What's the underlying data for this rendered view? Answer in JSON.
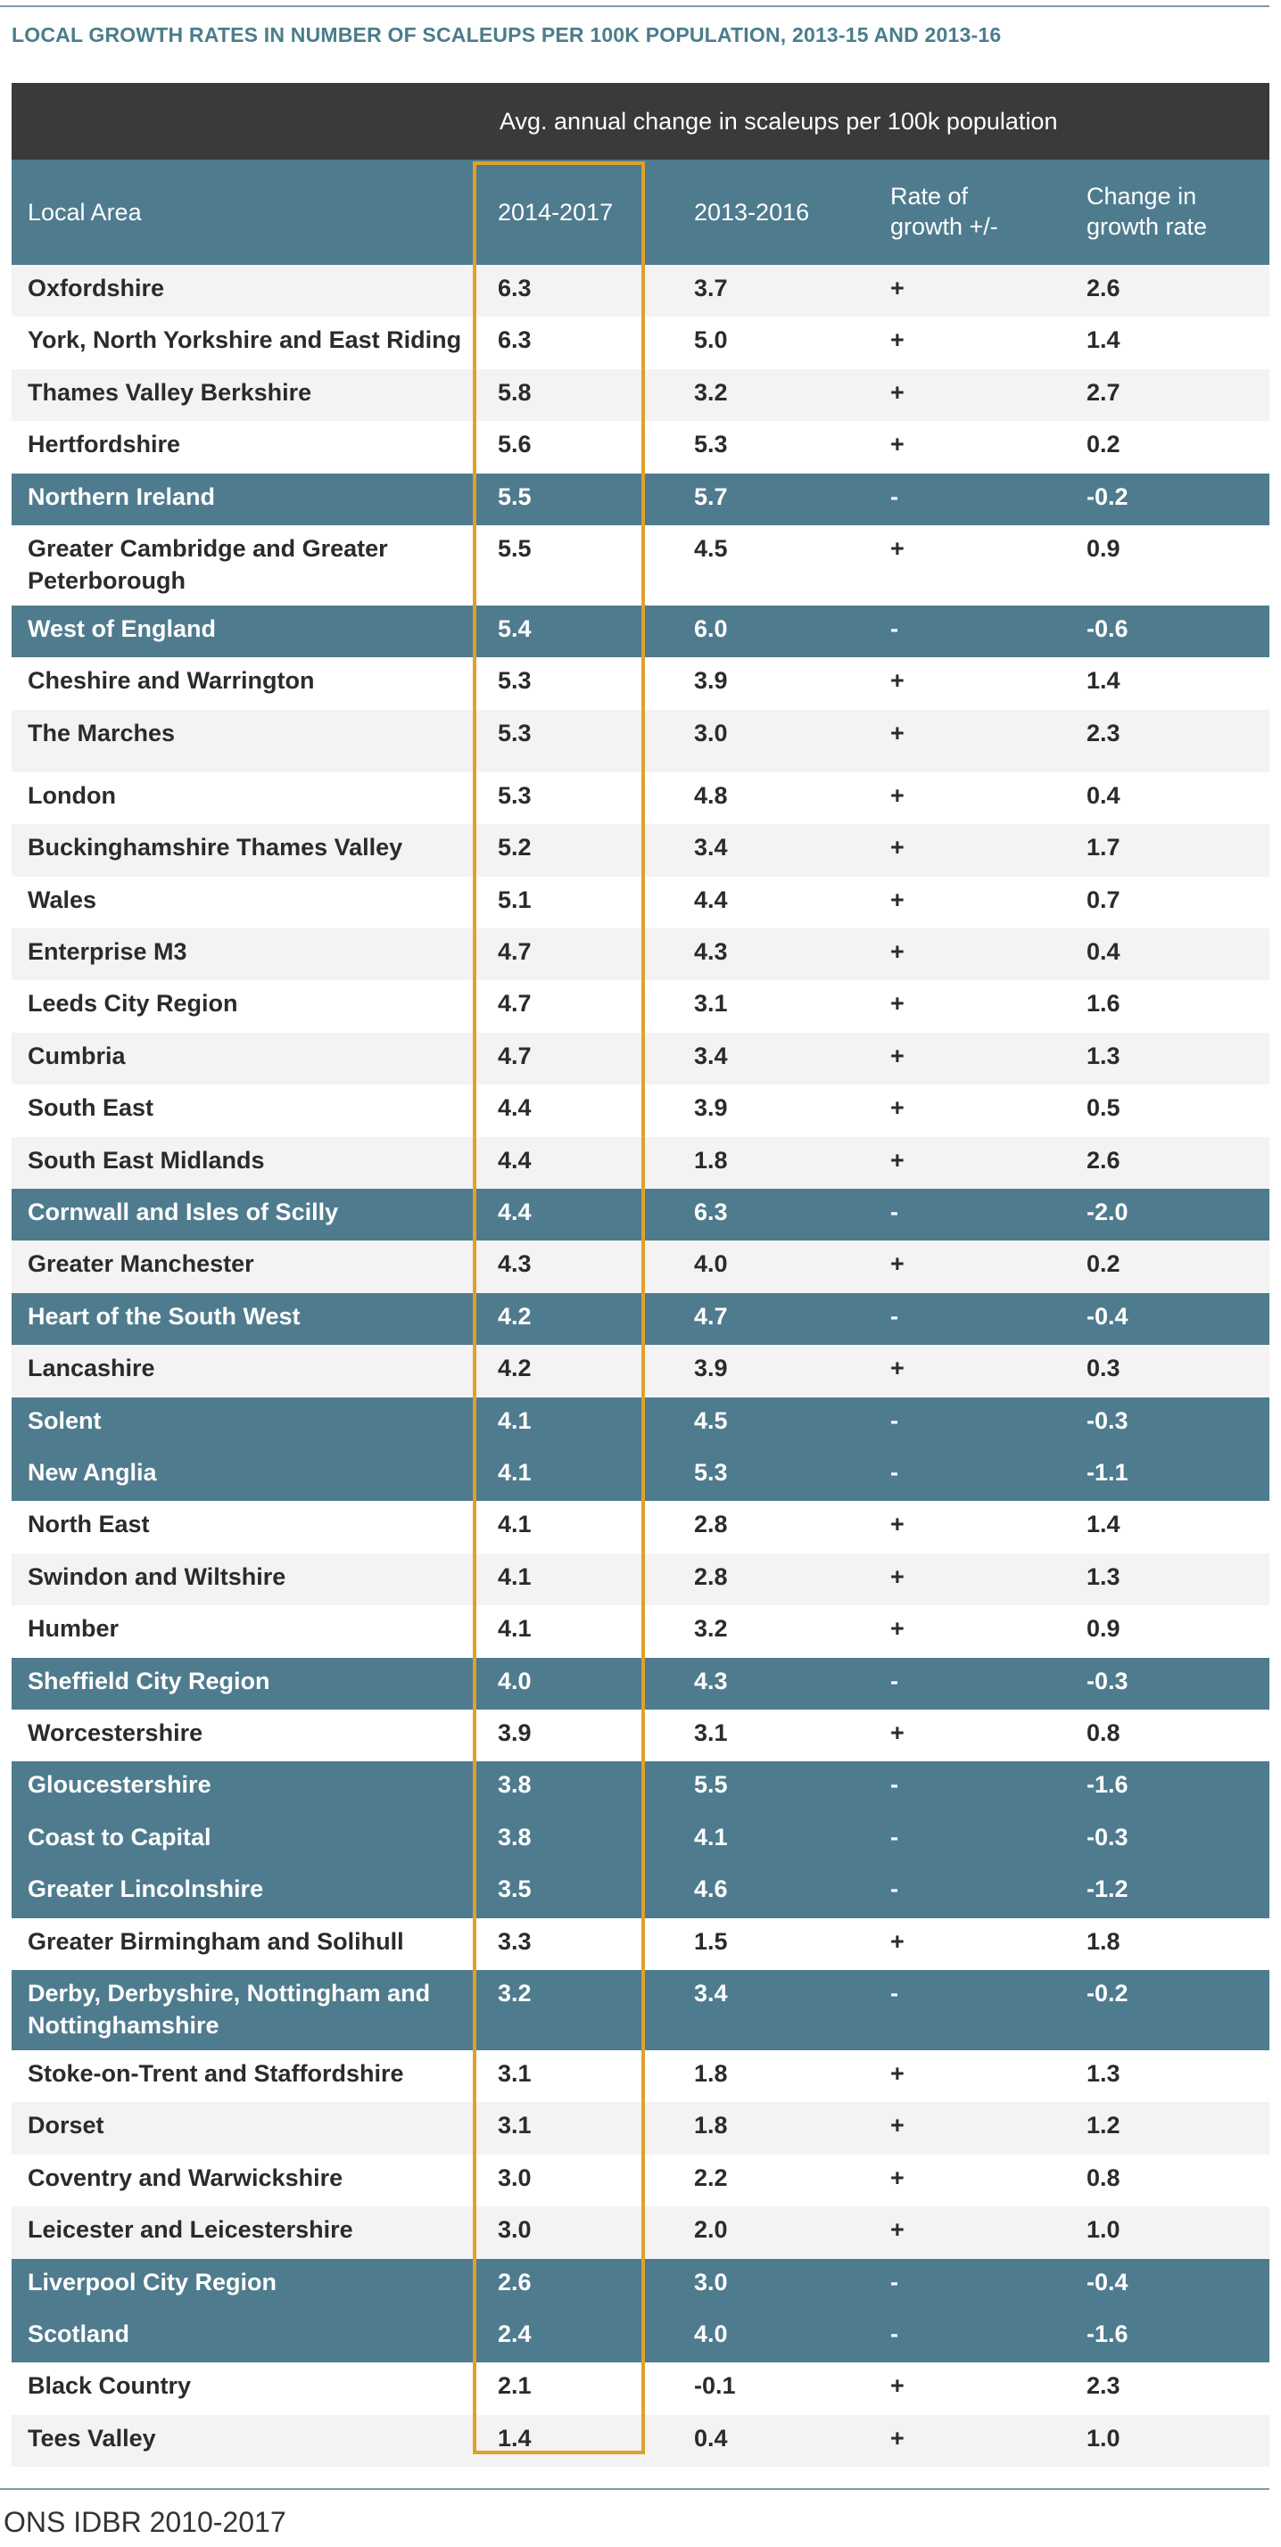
{
  "title": "LOCAL GROWTH RATES IN NUMBER OF SCALEUPS PER 100K POPULATION, 2013-15 AND 2013-16",
  "group_header": "Avg. annual change in scaleups per 100k population",
  "columns": {
    "area": "Local Area",
    "a": "2014-2017",
    "b": "2013-2016",
    "c": "Rate of growth +/-",
    "d": "Change in growth rate"
  },
  "rows": [
    {
      "area": "Oxfordshire",
      "a": "6.3",
      "b": "3.7",
      "c": "+",
      "d": "2.6"
    },
    {
      "area": "York, North Yorkshire and East Riding",
      "a": "6.3",
      "b": "5.0",
      "c": "+",
      "d": "1.4"
    },
    {
      "area": "Thames Valley Berkshire",
      "a": "5.8",
      "b": "3.2",
      "c": "+",
      "d": "2.7"
    },
    {
      "area": "Hertfordshire",
      "a": "5.6",
      "b": "5.3",
      "c": "+",
      "d": "0.2"
    },
    {
      "area": "Northern Ireland",
      "a": "5.5",
      "b": "5.7",
      "c": "-",
      "d": "-0.2"
    },
    {
      "area": "Greater Cambridge and Greater Peterborough",
      "a": "5.5",
      "b": "4.5",
      "c": "+",
      "d": "0.9"
    },
    {
      "area": "West of England",
      "a": "5.4",
      "b": "6.0",
      "c": "-",
      "d": "-0.6"
    },
    {
      "area": "Cheshire and Warrington",
      "a": "5.3",
      "b": "3.9",
      "c": "+",
      "d": "1.4"
    },
    {
      "area": "The Marches",
      "a": "5.3",
      "b": "3.0",
      "c": "+",
      "d": "2.3"
    },
    {
      "area": "London",
      "a": "5.3",
      "b": "4.8",
      "c": "+",
      "d": "0.4"
    },
    {
      "area": "Buckinghamshire Thames Valley",
      "a": "5.2",
      "b": "3.4",
      "c": "+",
      "d": "1.7"
    },
    {
      "area": "Wales",
      "a": "5.1",
      "b": "4.4",
      "c": "+",
      "d": "0.7"
    },
    {
      "area": "Enterprise M3",
      "a": "4.7",
      "b": "4.3",
      "c": "+",
      "d": "0.4"
    },
    {
      "area": "Leeds City Region",
      "a": "4.7",
      "b": "3.1",
      "c": "+",
      "d": "1.6"
    },
    {
      "area": "Cumbria",
      "a": "4.7",
      "b": "3.4",
      "c": "+",
      "d": "1.3"
    },
    {
      "area": "South East",
      "a": "4.4",
      "b": "3.9",
      "c": "+",
      "d": "0.5"
    },
    {
      "area": "South East Midlands",
      "a": "4.4",
      "b": "1.8",
      "c": "+",
      "d": "2.6"
    },
    {
      "area": "Cornwall and Isles of Scilly",
      "a": "4.4",
      "b": "6.3",
      "c": "-",
      "d": "-2.0"
    },
    {
      "area": "Greater Manchester",
      "a": "4.3",
      "b": "4.0",
      "c": "+",
      "d": "0.2"
    },
    {
      "area": "Heart of the South West",
      "a": "4.2",
      "b": "4.7",
      "c": "-",
      "d": "-0.4"
    },
    {
      "area": "Lancashire",
      "a": "4.2",
      "b": "3.9",
      "c": "+",
      "d": "0.3"
    },
    {
      "area": "Solent",
      "a": "4.1",
      "b": "4.5",
      "c": "-",
      "d": "-0.3"
    },
    {
      "area": "New Anglia",
      "a": "4.1",
      "b": "5.3",
      "c": "-",
      "d": "-1.1"
    },
    {
      "area": "North East",
      "a": "4.1",
      "b": "2.8",
      "c": "+",
      "d": "1.4"
    },
    {
      "area": "Swindon and Wiltshire",
      "a": "4.1",
      "b": "2.8",
      "c": "+",
      "d": "1.3"
    },
    {
      "area": "Humber",
      "a": "4.1",
      "b": "3.2",
      "c": "+",
      "d": "0.9"
    },
    {
      "area": "Sheffield City Region",
      "a": "4.0",
      "b": "4.3",
      "c": "-",
      "d": "-0.3"
    },
    {
      "area": "Worcestershire",
      "a": "3.9",
      "b": "3.1",
      "c": "+",
      "d": "0.8"
    },
    {
      "area": "Gloucestershire",
      "a": "3.8",
      "b": "5.5",
      "c": "-",
      "d": "-1.6"
    },
    {
      "area": "Coast to Capital",
      "a": "3.8",
      "b": "4.1",
      "c": "-",
      "d": "-0.3"
    },
    {
      "area": "Greater Lincolnshire",
      "a": "3.5",
      "b": "4.6",
      "c": "-",
      "d": "-1.2"
    },
    {
      "area": "Greater Birmingham and Solihull",
      "a": "3.3",
      "b": "1.5",
      "c": "+",
      "d": "1.8"
    },
    {
      "area": "Derby, Derbyshire, Nottingham and Nottinghamshire",
      "a": "3.2",
      "b": "3.4",
      "c": "-",
      "d": "-0.2"
    },
    {
      "area": "Stoke-on-Trent and Staffordshire",
      "a": "3.1",
      "b": "1.8",
      "c": "+",
      "d": "1.3"
    },
    {
      "area": "Dorset",
      "a": "3.1",
      "b": "1.8",
      "c": "+",
      "d": "1.2"
    },
    {
      "area": "Coventry and Warwickshire",
      "a": "3.0",
      "b": "2.2",
      "c": "+",
      "d": "0.8"
    },
    {
      "area": "Leicester and Leicestershire",
      "a": "3.0",
      "b": "2.0",
      "c": "+",
      "d": "1.0"
    },
    {
      "area": "Liverpool City Region",
      "a": "2.6",
      "b": "3.0",
      "c": "-",
      "d": "-0.4"
    },
    {
      "area": "Scotland",
      "a": "2.4",
      "b": "4.0",
      "c": "-",
      "d": "-1.6"
    },
    {
      "area": "Black Country",
      "a": "2.1",
      "b": "-0.1",
      "c": "+",
      "d": "2.3"
    },
    {
      "area": "Tees Valley",
      "a": "1.4",
      "b": "0.4",
      "c": "+",
      "d": "1.0"
    }
  ],
  "source": "ONS IDBR 2010-2017",
  "colors": {
    "title": "#4a7d8c",
    "header_dark": "#3a3a3a",
    "header_teal": "#4f7b8e",
    "negative_row": "#4f7b8e",
    "stripe": "#f3f3f3",
    "highlight_border": "#e0a12b"
  }
}
